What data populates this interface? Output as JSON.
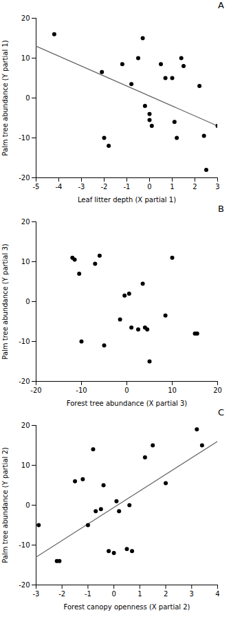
{
  "chart_data": [
    {
      "type": "scatter",
      "title": "A",
      "x_label": "Leaf litter depth (X partial 1)",
      "y_label": "Palm tree abundance (Y partial 1)",
      "xlim": [
        -5,
        3
      ],
      "ylim": [
        -20,
        20
      ],
      "xticks": [
        -5,
        -4,
        -3,
        -2,
        -1,
        0,
        1,
        2,
        3
      ],
      "yticks": [
        -20,
        -10,
        0,
        10,
        20
      ],
      "series": [
        {
          "type": "line",
          "color": "#666666",
          "x": [
            -5,
            3
          ],
          "values": [
            13.0,
            -7.0
          ]
        },
        {
          "type": "scatter",
          "color": "#000000",
          "x": [
            -4.2,
            -2.1,
            -2.0,
            -1.8,
            -1.2,
            -0.8,
            -0.5,
            -0.3,
            -0.2,
            0.0,
            0.0,
            0.1,
            0.5,
            0.7,
            1.0,
            1.1,
            1.2,
            1.4,
            1.5,
            2.2,
            2.4,
            2.5,
            3.0
          ],
          "values": [
            16.0,
            6.5,
            -10.0,
            -12.0,
            8.5,
            3.5,
            10.0,
            15.0,
            -2.0,
            -4.0,
            -5.5,
            -7.0,
            8.5,
            5.0,
            5.0,
            -6.0,
            -10.0,
            10.0,
            8.0,
            3.0,
            -9.5,
            -18.0,
            -7.0
          ]
        }
      ]
    },
    {
      "type": "scatter",
      "title": "B",
      "x_label": "Forest tree abundance (X partial 3)",
      "y_label": "Palm tree abundance (Y partial 3)",
      "xlim": [
        -20,
        20
      ],
      "ylim": [
        -20,
        20
      ],
      "xticks": [
        -20,
        -10,
        0,
        10,
        20
      ],
      "yticks": [
        -20,
        -10,
        0,
        10,
        20
      ],
      "series": [
        {
          "type": "scatter",
          "color": "#000000",
          "x": [
            -12.0,
            -11.5,
            -10.5,
            -10.0,
            -7.0,
            -6.0,
            -5.0,
            -1.5,
            -0.5,
            0.5,
            1.0,
            2.5,
            3.5,
            4.0,
            4.5,
            5.0,
            8.5,
            10.0,
            15.0,
            15.5
          ],
          "values": [
            11.0,
            10.5,
            7.0,
            -10.0,
            9.5,
            11.5,
            -11.0,
            -4.5,
            1.5,
            2.0,
            -6.5,
            -7.0,
            4.5,
            -6.5,
            -7.0,
            -15.0,
            -3.5,
            11.0,
            -8.0,
            -8.0
          ]
        }
      ]
    },
    {
      "type": "scatter",
      "title": "C",
      "x_label": "Forest canopy openness (X partial 2)",
      "y_label": "Palm tree abundance (Y partial 2)",
      "xlim": [
        -3,
        4
      ],
      "ylim": [
        -20,
        20
      ],
      "xticks": [
        -3,
        -2,
        -1,
        0,
        1,
        2,
        3,
        4
      ],
      "yticks": [
        -20,
        -10,
        0,
        10,
        20
      ],
      "series": [
        {
          "type": "line",
          "color": "#666666",
          "x": [
            -3,
            4
          ],
          "values": [
            -13.0,
            16.0
          ]
        },
        {
          "type": "scatter",
          "color": "#000000",
          "x": [
            -2.9,
            -2.2,
            -2.1,
            -1.5,
            -1.2,
            -1.0,
            -0.8,
            -0.7,
            -0.5,
            -0.4,
            -0.2,
            0.0,
            0.1,
            0.2,
            0.5,
            0.6,
            0.7,
            1.2,
            1.5,
            2.0,
            3.2,
            3.4
          ],
          "values": [
            -5.0,
            -14.0,
            -14.0,
            6.0,
            6.5,
            -5.0,
            14.0,
            -1.5,
            -1.0,
            5.0,
            -11.5,
            -12.0,
            1.0,
            -1.5,
            -11.0,
            0.0,
            -11.5,
            12.0,
            15.0,
            5.5,
            19.0,
            15.0
          ]
        }
      ]
    }
  ]
}
